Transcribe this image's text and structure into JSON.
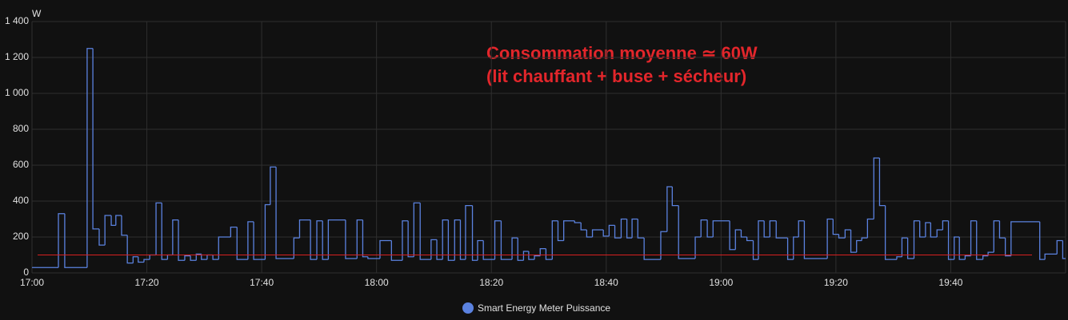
{
  "chart_data": {
    "type": "step-line",
    "y_unit": "W",
    "annotations": [
      "Consommation moyenne ≃ 60W",
      "(lit chauffant + buse + sécheur)"
    ],
    "annotation_color": "#e3262b",
    "reference_line": {
      "value": 100,
      "color": "#d91f1f"
    },
    "xlim": [
      0,
      180
    ],
    "xticks": [
      {
        "value": 0,
        "label": "17:00"
      },
      {
        "value": 20,
        "label": "17:20"
      },
      {
        "value": 40,
        "label": "17:40"
      },
      {
        "value": 60,
        "label": "18:00"
      },
      {
        "value": 80,
        "label": "18:20"
      },
      {
        "value": 100,
        "label": "18:40"
      },
      {
        "value": 120,
        "label": "19:00"
      },
      {
        "value": 140,
        "label": "19:20"
      },
      {
        "value": 160,
        "label": "19:40"
      }
    ],
    "ylim": [
      0,
      1400
    ],
    "yticks": [
      0,
      200,
      400,
      600,
      800,
      {
        "value": 1000,
        "label": "1 000"
      },
      {
        "value": 1200,
        "label": "1 200"
      },
      {
        "value": 1400,
        "label": "1 400"
      }
    ],
    "grid": true,
    "series": [
      {
        "name": "Smart Energy Meter Puissance",
        "color": "#5b82e0",
        "x": [
          0,
          4.6,
          5.7,
          9.6,
          10.6,
          11.7,
          12.7,
          13.8,
          14.6,
          15.6,
          16.6,
          17.6,
          18.5,
          19.5,
          20.5,
          21.6,
          22.6,
          23.6,
          24.5,
          25.5,
          26.6,
          27.6,
          28.6,
          29.5,
          30.5,
          31.5,
          32.5,
          34.6,
          35.7,
          37.6,
          38.6,
          40.6,
          41.5,
          42.5,
          45.6,
          46.6,
          48.5,
          49.6,
          50.6,
          51.6,
          54.6,
          56.6,
          57.6,
          58.5,
          60.6,
          62.6,
          64.5,
          65.5,
          66.5,
          67.6,
          69.5,
          70.5,
          71.5,
          72.5,
          73.6,
          74.6,
          75.5,
          76.7,
          77.6,
          78.6,
          80.6,
          81.7,
          83.6,
          84.6,
          85.6,
          86.5,
          87.5,
          88.5,
          89.5,
          90.6,
          91.6,
          92.6,
          94.5,
          95.6,
          96.6,
          97.6,
          99.5,
          100.5,
          101.5,
          102.6,
          103.6,
          104.5,
          105.5,
          106.6,
          109.5,
          110.6,
          111.5,
          112.6,
          115.5,
          116.5,
          117.6,
          118.6,
          121.5,
          122.5,
          123.5,
          124.5,
          125.6,
          126.5,
          127.5,
          128.5,
          129.6,
          131.6,
          132.6,
          133.5,
          134.5,
          138.5,
          139.5,
          140.5,
          141.6,
          142.6,
          143.6,
          144.5,
          145.5,
          146.6,
          147.6,
          148.6,
          150.6,
          151.5,
          152.5,
          153.6,
          154.6,
          155.6,
          156.5,
          157.6,
          158.6,
          159.6,
          160.6,
          161.5,
          162.5,
          163.5,
          164.5,
          165.6,
          166.5,
          167.5,
          168.5,
          169.5,
          170.5,
          175.5,
          176.4,
          178.5,
          179.5
        ],
        "values": [
          30,
          330,
          30,
          1250,
          245,
          155,
          320,
          265,
          320,
          210,
          55,
          90,
          60,
          75,
          100,
          390,
          75,
          100,
          295,
          70,
          95,
          70,
          105,
          75,
          100,
          75,
          200,
          255,
          75,
          285,
          75,
          380,
          590,
          80,
          195,
          295,
          75,
          290,
          75,
          295,
          80,
          295,
          90,
          80,
          180,
          70,
          290,
          90,
          390,
          75,
          185,
          75,
          295,
          70,
          295,
          75,
          375,
          70,
          180,
          75,
          290,
          75,
          195,
          70,
          120,
          75,
          95,
          135,
          75,
          290,
          180,
          290,
          280,
          240,
          200,
          240,
          205,
          265,
          195,
          300,
          195,
          300,
          195,
          75,
          230,
          480,
          375,
          80,
          200,
          295,
          200,
          290,
          130,
          240,
          200,
          180,
          75,
          290,
          200,
          290,
          195,
          75,
          200,
          290,
          80,
          300,
          215,
          195,
          240,
          115,
          180,
          195,
          300,
          640,
          375,
          75,
          90,
          195,
          80,
          290,
          200,
          280,
          200,
          240,
          290,
          75,
          200,
          75,
          95,
          290,
          75,
          95,
          115,
          290,
          195,
          95,
          285,
          75,
          105,
          180,
          80
        ]
      }
    ]
  }
}
